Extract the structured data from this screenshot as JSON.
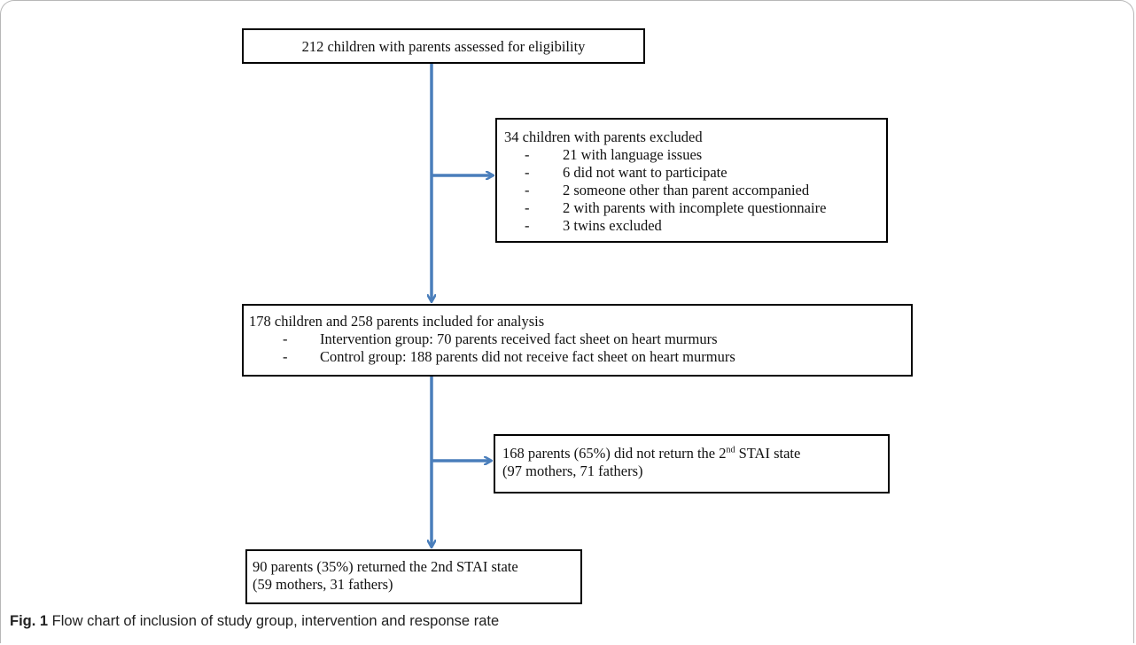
{
  "boxes": {
    "assessed": {
      "text": "212 children with parents assessed for eligibility"
    },
    "excluded": {
      "title": "34 children with parents excluded",
      "items": [
        "21 with language issues",
        "6 did not want to participate",
        "2 someone other than parent accompanied",
        "2 with parents with incomplete questionnaire",
        "3 twins excluded"
      ]
    },
    "included": {
      "title": "178 children and 258 parents included for analysis",
      "items": [
        "Intervention group: 70 parents received fact sheet on heart murmurs",
        "Control group: 188 parents did not receive fact sheet on heart murmurs"
      ]
    },
    "not_returned": {
      "line1_pre": "168 parents (65%) did not return the 2",
      "line1_sup": "nd",
      "line1_post": " STAI state",
      "line2": "(97 mothers, 71 fathers)"
    },
    "returned": {
      "line1": "90 parents (35%) returned the 2nd STAI state",
      "line2": "(59 mothers, 31 fathers)"
    }
  },
  "bullet": "-",
  "caption": {
    "label": "Fig. 1",
    "text": " Flow chart of inclusion of study group, intervention and response rate"
  },
  "colors": {
    "arrow": "#4a7ebb",
    "border": "#000000"
  }
}
